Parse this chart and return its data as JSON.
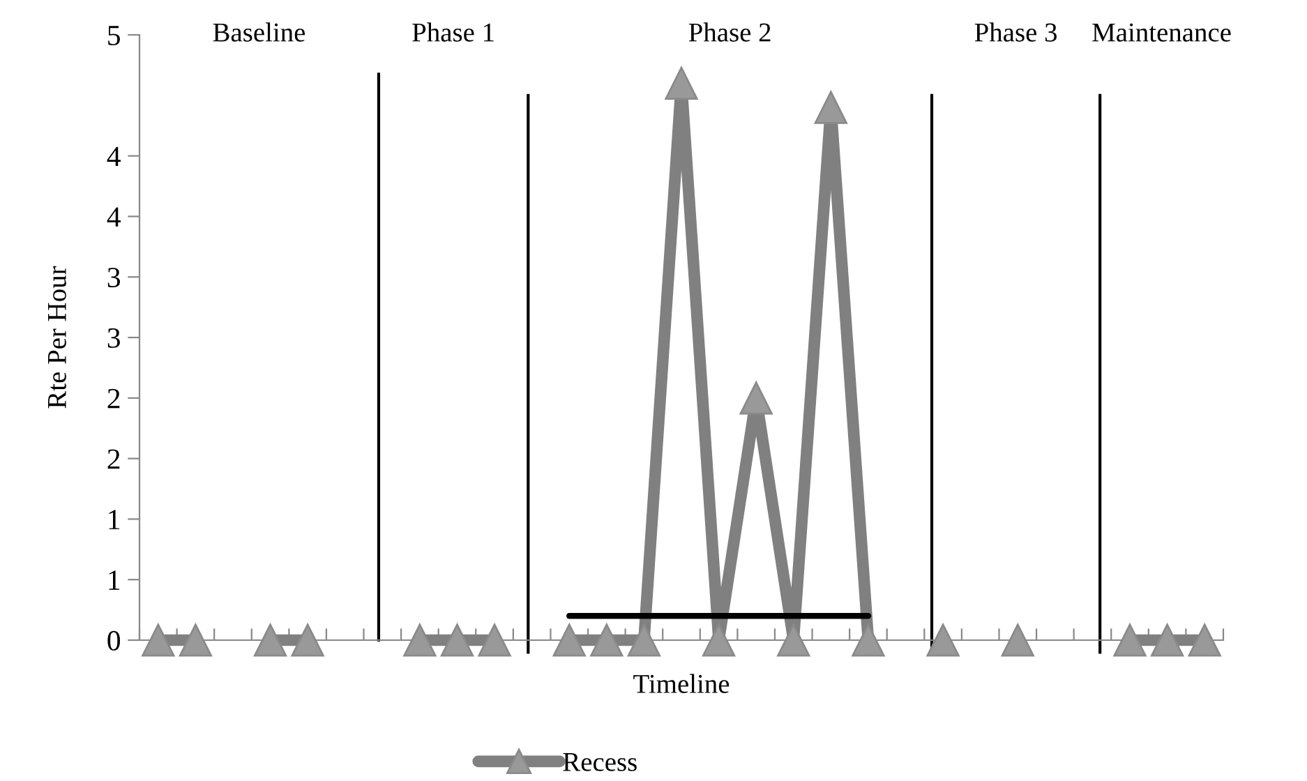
{
  "chart_data": {
    "type": "line",
    "xlabel": "Timeline",
    "ylabel": "Rte Per Hour",
    "categories": [
      null,
      null,
      null,
      null,
      null,
      null,
      null,
      null,
      null,
      null,
      null,
      null,
      null,
      null,
      null,
      null,
      null,
      null,
      null,
      null,
      null,
      null,
      null,
      null,
      null,
      null,
      null,
      null,
      null
    ],
    "series": [
      {
        "name": "Recess",
        "color": "#808080",
        "marker": "triangle",
        "values": [
          0,
          0,
          null,
          0,
          0,
          null,
          null,
          0,
          0,
          0,
          null,
          0,
          0,
          0,
          4.6,
          0,
          2.0,
          0,
          4.4,
          0,
          null,
          0,
          null,
          0,
          null,
          null,
          0,
          0,
          0
        ]
      },
      {
        "type": "line",
        "color": "#000000",
        "marker": "none",
        "values": [
          null,
          null,
          null,
          null,
          null,
          null,
          null,
          null,
          null,
          null,
          null,
          0.2,
          0.2,
          0.2,
          0.2,
          0.2,
          0.2,
          0.2,
          0.2,
          0.2,
          null,
          null,
          null,
          null,
          null,
          null,
          null,
          null,
          null
        ]
      }
    ],
    "annotations": [
      "Baseline",
      "Phase 1",
      "Phase 2",
      "Phase 3",
      "Maintenance"
    ],
    "ylim": [
      0,
      5
    ],
    "yticks": [
      0,
      {
        "value": 0.5,
        "label": "1"
      },
      1,
      {
        "value": 1.5,
        "label": "2"
      },
      2,
      {
        "value": 2.5,
        "label": "3"
      },
      3,
      {
        "value": 3.5,
        "label": "4"
      },
      4,
      5
    ],
    "grid": false,
    "legend": "bottom"
  }
}
